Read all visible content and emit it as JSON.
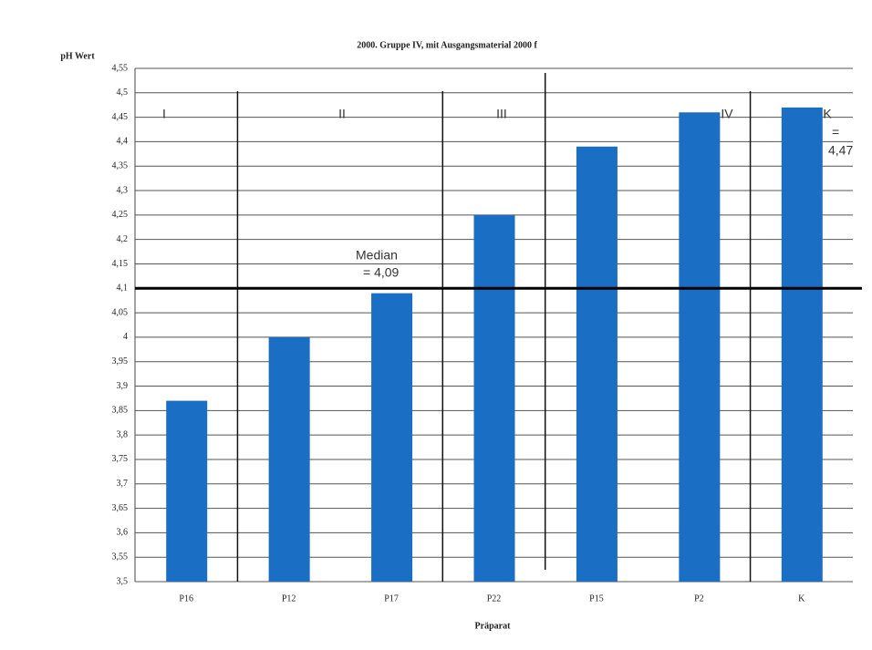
{
  "chart_data": {
    "type": "bar",
    "title": "2000. Gruppe IV, mit Ausgangsmaterial 2000 f",
    "y_label": "pH Wert",
    "x_label": "Präparat",
    "categories": [
      "P16",
      "P12",
      "P17",
      "P22",
      "P15",
      "P2",
      "K"
    ],
    "values": [
      3.87,
      4.0,
      4.09,
      4.25,
      4.39,
      4.46,
      4.47
    ],
    "color": "#1a6fc4",
    "ylim": [
      3.5,
      4.55
    ],
    "yticks": [
      {
        "value": 3.5,
        "label": "3,5"
      },
      {
        "value": 3.55,
        "label": "3,55"
      },
      {
        "value": 3.6,
        "label": "3,6"
      },
      {
        "value": 3.65,
        "label": "3,65"
      },
      {
        "value": 3.7,
        "label": "3,7"
      },
      {
        "value": 3.75,
        "label": "3,75"
      },
      {
        "value": 3.8,
        "label": "3,8"
      },
      {
        "value": 3.85,
        "label": "3,85"
      },
      {
        "value": 3.9,
        "label": "3,9"
      },
      {
        "value": 3.95,
        "label": "3,95"
      },
      4,
      {
        "value": 4.05,
        "label": "4,05"
      },
      {
        "value": 4.1,
        "label": "4,1"
      },
      {
        "value": 4.15,
        "label": "4,15"
      },
      {
        "value": 4.2,
        "label": "4,2"
      },
      {
        "value": 4.25,
        "label": "4,25"
      },
      {
        "value": 4.3,
        "label": "4,3"
      },
      {
        "value": 4.35,
        "label": "4,35"
      },
      {
        "value": 4.4,
        "label": "4,4"
      },
      {
        "value": 4.45,
        "label": "4,45"
      },
      {
        "value": 4.5,
        "label": "4,5"
      },
      {
        "value": 4.55,
        "label": "4,55"
      }
    ],
    "grid": true,
    "median_line": 4.1,
    "groups": [
      "I",
      "II",
      "III",
      "IV",
      "K"
    ],
    "annotations": [
      "Median",
      "= 4,09",
      "=",
      "4,47"
    ]
  }
}
